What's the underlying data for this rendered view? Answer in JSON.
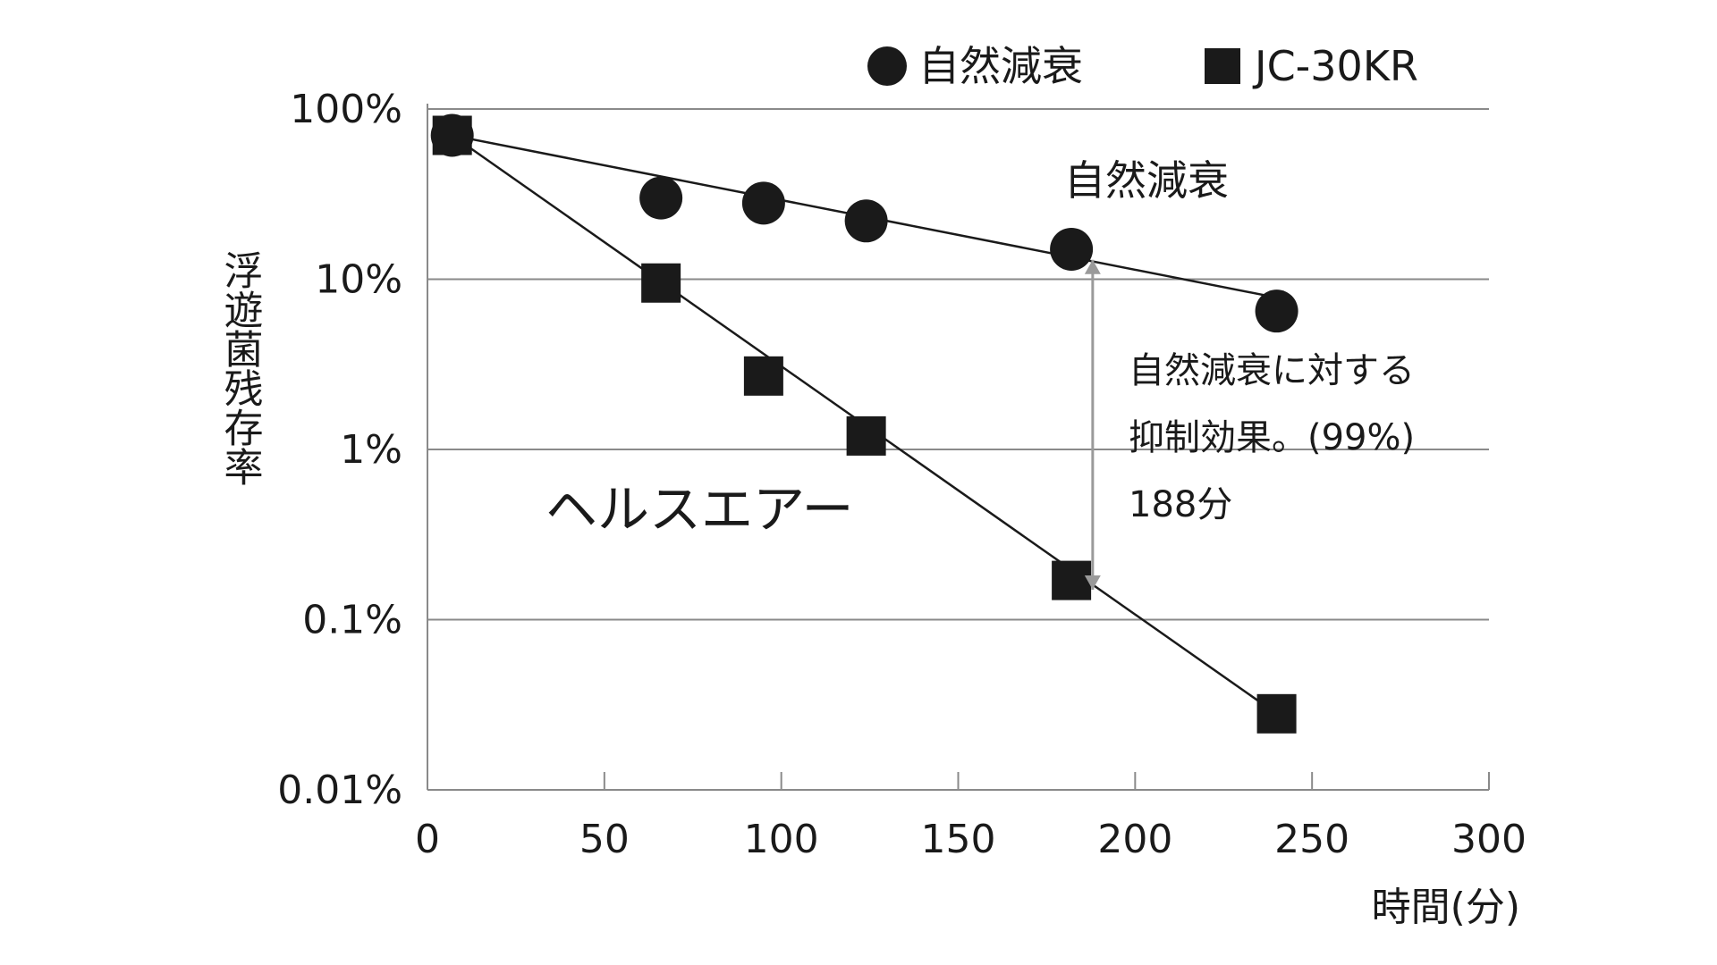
{
  "chart_data": {
    "type": "line",
    "title": "",
    "xlabel": "時間(分)",
    "ylabel": "浮遊菌残存率",
    "x_ticks": [
      "0",
      "50",
      "100",
      "150",
      "200",
      "250",
      "300"
    ],
    "y_ticks": [
      "100%",
      "10%",
      "1%",
      "0.1%",
      "0.01%"
    ],
    "xlim": [
      0,
      300
    ],
    "ylim": [
      0.01,
      100
    ],
    "y_scale": "log",
    "grid": "horizontal",
    "legend_position": "top-right",
    "series": [
      {
        "name": "自然減衰",
        "marker": "circle",
        "points": [
          {
            "x": 7,
            "y": 70
          },
          {
            "x": 66,
            "y": 30
          },
          {
            "x": 95,
            "y": 28
          },
          {
            "x": 124,
            "y": 22
          },
          {
            "x": 182,
            "y": 15
          },
          {
            "x": 240,
            "y": 6.5
          }
        ],
        "fit_line": [
          {
            "x": 7,
            "y": 70
          },
          {
            "x": 240,
            "y": 7.8
          }
        ]
      },
      {
        "name": "JC-30KR",
        "marker": "square",
        "points": [
          {
            "x": 7,
            "y": 70
          },
          {
            "x": 66,
            "y": 9.5
          },
          {
            "x": 95,
            "y": 2.7
          },
          {
            "x": 124,
            "y": 1.2
          },
          {
            "x": 182,
            "y": 0.17
          },
          {
            "x": 240,
            "y": 0.028
          }
        ],
        "fit_line": [
          {
            "x": 7,
            "y": 70
          },
          {
            "x": 240,
            "y": 0.028
          }
        ]
      }
    ],
    "annotations": {
      "natural_label": "自然減衰",
      "health_air": "ヘルスエアー",
      "effect_lines": [
        "自然減衰に対する",
        "抑制効果。(99%)",
        "188分"
      ],
      "arrow_x": 188,
      "arrow_y_top": 13,
      "arrow_y_bottom": 0.15
    },
    "colors": {
      "series": "#1a1a1a",
      "grid": "#8a8a8a",
      "arrow": "#9a9a9a"
    }
  }
}
